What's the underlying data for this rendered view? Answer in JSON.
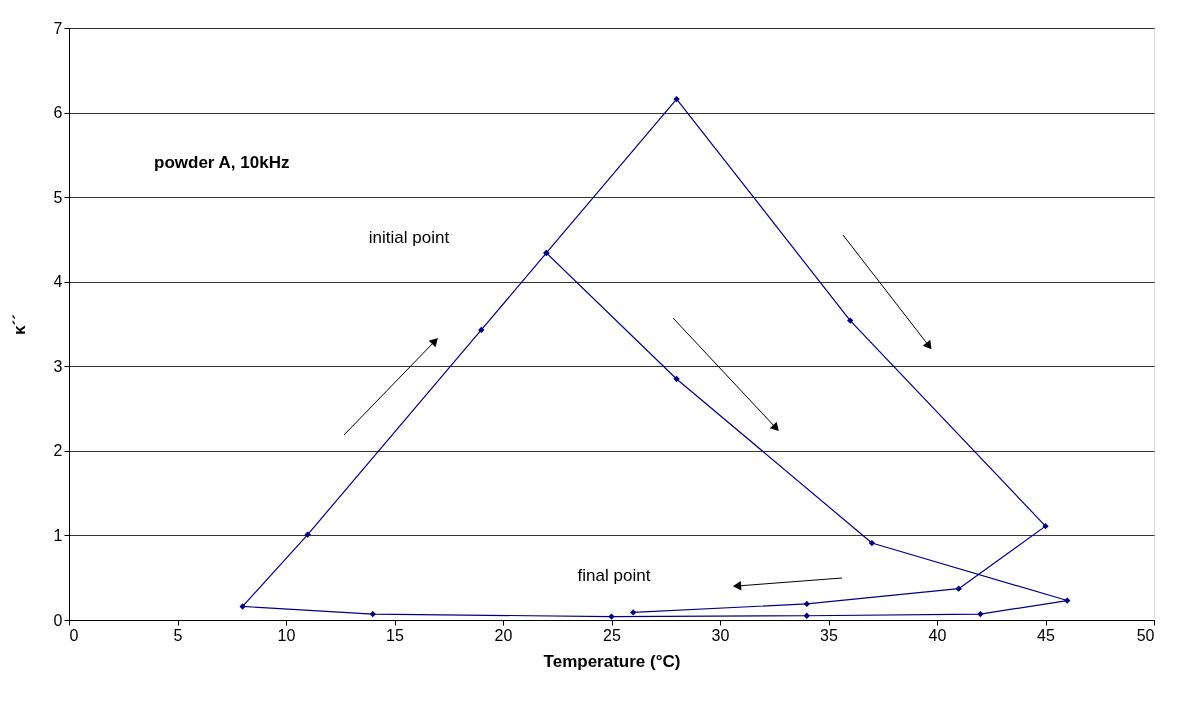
{
  "chart_data": {
    "type": "line",
    "xlabel": "Temperature (°C)",
    "ylabel": "κ´´",
    "xlim": [
      0,
      50
    ],
    "xticks": [
      0,
      5,
      10,
      15,
      20,
      25,
      30,
      35,
      40,
      45,
      50
    ],
    "ylim": [
      0,
      7
    ],
    "yticks": [
      0,
      1,
      2,
      3,
      4,
      5,
      6,
      7
    ],
    "grid": "y",
    "marker": "diamond",
    "legend": false,
    "annotations": [
      "powder A, 10kHz",
      "initial point",
      "final point"
    ],
    "series": [
      {
        "color": "#000080",
        "x": [
          22,
          28,
          37,
          46,
          42,
          34,
          25,
          14,
          8,
          11,
          19,
          22,
          28,
          36,
          45,
          41,
          34,
          26
        ],
        "values": [
          4.34,
          2.85,
          0.91,
          0.23,
          0.07,
          0.05,
          0.04,
          0.07,
          0.16,
          1.01,
          3.43,
          4.34,
          6.16,
          3.54,
          1.11,
          0.37,
          0.19,
          0.09
        ]
      }
    ]
  }
}
